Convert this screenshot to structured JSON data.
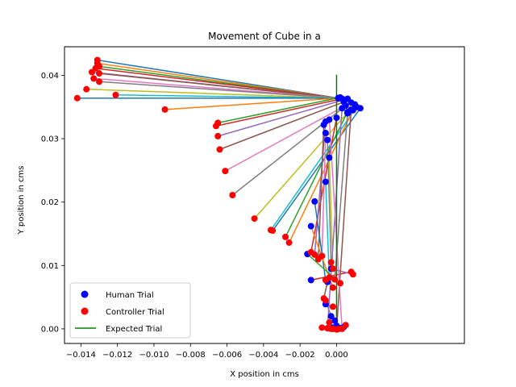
{
  "chart_data": {
    "type": "scatter",
    "title": "Movement of Cube in a",
    "xlabel": "X position in cms",
    "ylabel": "Y position in cms",
    "xlim": [
      -0.0149,
      0.007
    ],
    "ylim": [
      -0.0023,
      0.0445
    ],
    "xticks": [
      -0.014,
      -0.012,
      -0.01,
      -0.008,
      -0.006,
      -0.004,
      -0.002,
      0.0
    ],
    "xtick_labels": [
      "−0.014",
      "−0.012",
      "−0.010",
      "−0.008",
      "−0.006",
      "−0.004",
      "−0.002",
      "0.000"
    ],
    "yticks": [
      0.0,
      0.01,
      0.02,
      0.03,
      0.04
    ],
    "ytick_labels": [
      "0.00",
      "0.01",
      "0.02",
      "0.03",
      "0.04"
    ],
    "grid": false,
    "legend_position": "lower-left",
    "legend": [
      {
        "label": "Human Trial",
        "kind": "marker",
        "color": "#0000ff"
      },
      {
        "label": "Controller Trial",
        "kind": "marker",
        "color": "#ff0000"
      },
      {
        "label": "Expected Trial",
        "kind": "line",
        "color": "#008000"
      }
    ],
    "expected_trial": {
      "x": [
        0.0,
        0.0
      ],
      "y": [
        0.0,
        0.0401
      ]
    },
    "trial_colors": [
      "#1f77b4",
      "#ff7f0e",
      "#2ca02c",
      "#d62728",
      "#9467bd",
      "#8c564b",
      "#e377c2",
      "#7f7f7f",
      "#bcbd22",
      "#17becf"
    ],
    "trials": [
      {
        "human": [
          0.0001,
          0.0364
        ],
        "controller": [
          -0.0131,
          0.0424
        ]
      },
      {
        "human": [
          0.0001,
          0.0364
        ],
        "controller": [
          -0.0131,
          0.0419
        ]
      },
      {
        "human": [
          0.0001,
          0.0364
        ],
        "controller": [
          -0.013,
          0.0414
        ]
      },
      {
        "human": [
          0.0001,
          0.0364
        ],
        "controller": [
          -0.0132,
          0.0411
        ]
      },
      {
        "human": [
          0.0001,
          0.0364
        ],
        "controller": [
          -0.0134,
          0.0405
        ]
      },
      {
        "human": [
          0.0001,
          0.0364
        ],
        "controller": [
          -0.013,
          0.0403
        ]
      },
      {
        "human": [
          0.0001,
          0.0364
        ],
        "controller": [
          -0.0133,
          0.0395
        ]
      },
      {
        "human": [
          0.0001,
          0.0364
        ],
        "controller": [
          -0.013,
          0.039
        ]
      },
      {
        "human": [
          0.0001,
          0.0364
        ],
        "controller": [
          -0.0137,
          0.0378
        ]
      },
      {
        "human": [
          0.0001,
          0.0364
        ],
        "controller": [
          -0.0121,
          0.0369
        ]
      },
      {
        "human": [
          0.0001,
          0.0364
        ],
        "controller": [
          -0.0142,
          0.0364
        ]
      },
      {
        "human": [
          0.0001,
          0.0364
        ],
        "controller": [
          -0.0094,
          0.0346
        ]
      },
      {
        "human": [
          0.0002,
          0.0365
        ],
        "controller": [
          -0.0065,
          0.0325
        ]
      },
      {
        "human": [
          0.0003,
          0.0363
        ],
        "controller": [
          -0.0066,
          0.032
        ]
      },
      {
        "human": [
          0.0006,
          0.0363
        ],
        "controller": [
          -0.0065,
          0.0304
        ]
      },
      {
        "human": [
          0.0004,
          0.0358
        ],
        "controller": [
          -0.0064,
          0.0283
        ]
      },
      {
        "human": [
          0.0008,
          0.0357
        ],
        "controller": [
          -0.0061,
          0.0249
        ]
      },
      {
        "human": [
          0.0005,
          0.0352
        ],
        "controller": [
          -0.0057,
          0.0211
        ]
      },
      {
        "human": [
          0.001,
          0.0354
        ],
        "controller": [
          -0.0045,
          0.0174
        ]
      },
      {
        "human": [
          0.0011,
          0.035
        ],
        "controller": [
          -0.0036,
          0.0156
        ]
      },
      {
        "human": [
          0.0013,
          0.0348
        ],
        "controller": [
          -0.0035,
          0.0155
        ]
      },
      {
        "human": [
          0.0009,
          0.0345
        ],
        "controller": [
          -0.0026,
          0.0136
        ]
      },
      {
        "human": [
          0.0006,
          0.0342
        ],
        "controller": [
          -0.0028,
          0.0145
        ]
      },
      {
        "human": [
          0.0,
          0.0333
        ],
        "controller": [
          -0.0014,
          0.0121
        ]
      },
      {
        "human": [
          -0.0006,
          0.0327
        ],
        "controller": [
          -0.0012,
          0.0117
        ]
      },
      {
        "human": [
          -0.0007,
          0.0322
        ],
        "controller": [
          -0.001,
          0.011
        ]
      },
      {
        "human": [
          -0.0006,
          0.0309
        ],
        "controller": [
          -0.0008,
          0.0115
        ]
      },
      {
        "human": [
          -0.0005,
          0.0298
        ],
        "controller": [
          -0.0003,
          0.0105
        ]
      },
      {
        "human": [
          -0.0004,
          0.027
        ],
        "controller": [
          -0.0002,
          0.0095
        ]
      },
      {
        "human": [
          -0.0006,
          0.0232
        ],
        "controller": [
          -0.0004,
          0.0081
        ]
      },
      {
        "human": [
          -0.0012,
          0.0201
        ],
        "controller": [
          -0.0006,
          0.0077
        ]
      },
      {
        "human": [
          -0.0014,
          0.0162
        ],
        "controller": [
          -0.0002,
          0.0065
        ]
      },
      {
        "human": [
          -0.0016,
          0.0118
        ],
        "controller": [
          0.0002,
          0.0072
        ]
      },
      {
        "human": [
          -0.0014,
          0.0077
        ],
        "controller": [
          0.0008,
          0.009
        ]
      },
      {
        "human": [
          -0.0003,
          0.0095
        ],
        "controller": [
          0.0009,
          0.0086
        ]
      },
      {
        "human": [
          -0.0005,
          0.0074
        ],
        "controller": [
          -0.0007,
          0.0048
        ]
      },
      {
        "human": [
          -0.0006,
          0.0039
        ],
        "controller": [
          -0.0002,
          0.0035
        ]
      },
      {
        "human": [
          -0.0003,
          0.002
        ],
        "controller": [
          -0.0006,
          0.0045
        ]
      },
      {
        "human": [
          -0.0001,
          0.0013
        ],
        "controller": [
          -0.0004,
          0.001
        ]
      },
      {
        "human": [
          0.0,
          0.0005
        ],
        "controller": [
          -0.0008,
          0.0002
        ]
      },
      {
        "human": [
          -0.0002,
          0.0002
        ],
        "controller": [
          -0.0003,
          0.0
        ]
      },
      {
        "human": [
          0.0001,
          0.0
        ],
        "controller": [
          0.0005,
          0.0006
        ]
      },
      {
        "human": [
          0.0002,
          0.0001
        ],
        "controller": [
          -0.0002,
          0.0
        ]
      },
      {
        "human": [
          0.0004,
          0.0003
        ],
        "controller": [
          0.0001,
          0.0
        ]
      },
      {
        "human": [
          0.0003,
          0.0348
        ],
        "controller": [
          -0.0005,
          0.0001
        ]
      },
      {
        "human": [
          0.0008,
          0.0346
        ],
        "controller": [
          0.0,
          -0.0001
        ]
      },
      {
        "human": [
          -0.0004,
          0.033
        ],
        "controller": [
          0.0003,
          0.0
        ]
      },
      {
        "human": [
          0.0006,
          0.034
        ],
        "controller": [
          -0.0001,
          0.0078
        ]
      }
    ]
  }
}
